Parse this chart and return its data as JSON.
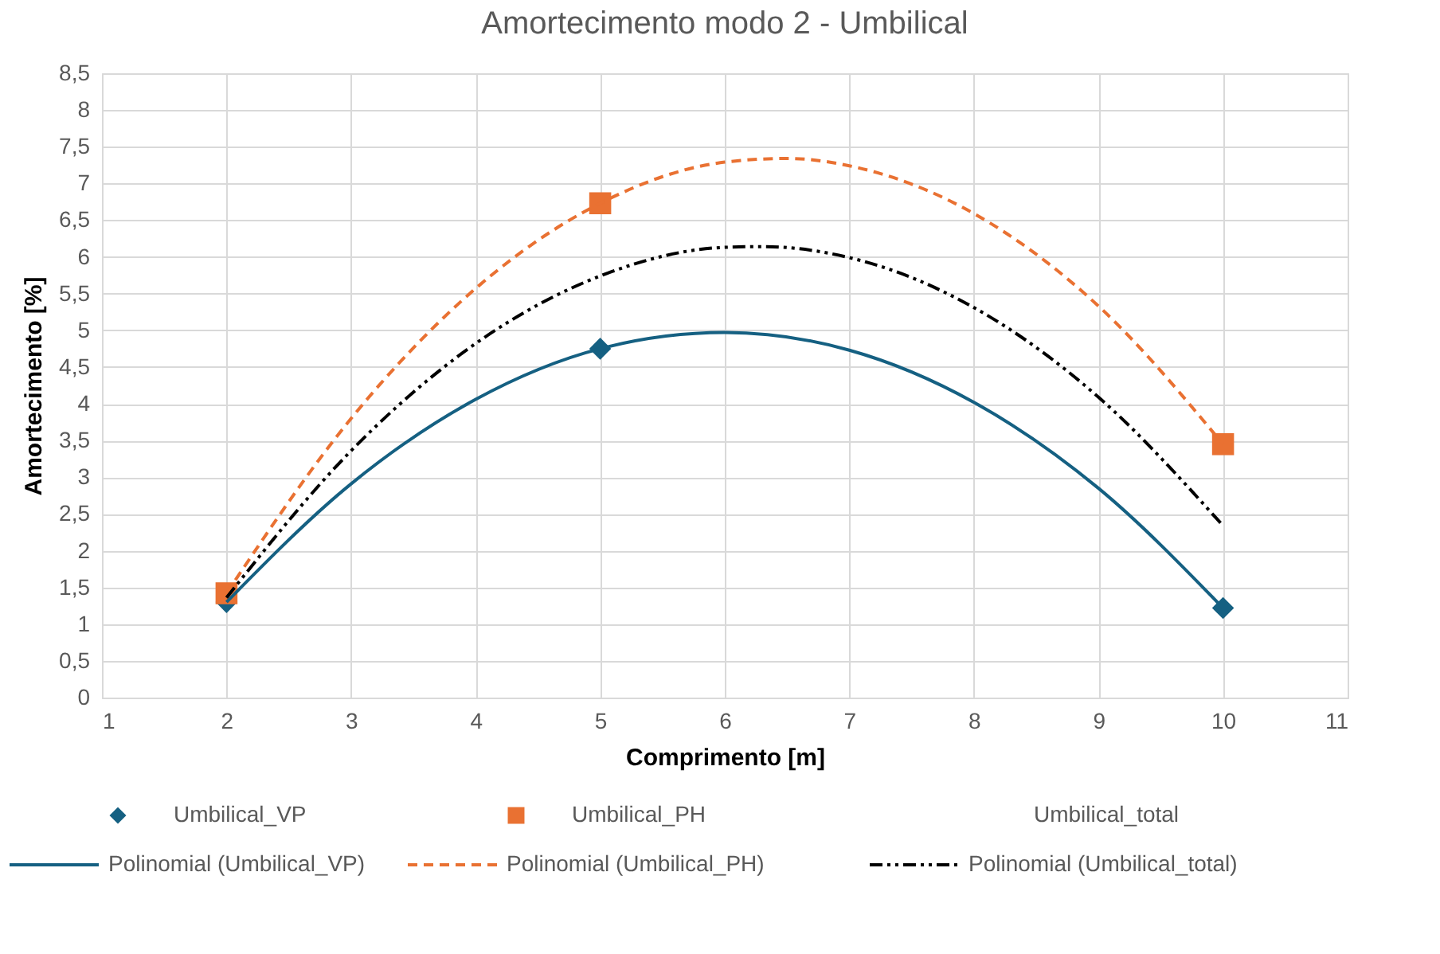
{
  "chart_data": {
    "type": "scatter",
    "title": "Amortecimento modo 2 - Umbilical",
    "xlabel": "Comprimento [m]",
    "ylabel": "Amortecimento [%]",
    "xlim": [
      1,
      11
    ],
    "xticks": [
      1,
      2,
      3,
      4,
      5,
      6,
      7,
      8,
      9,
      10,
      11
    ],
    "ylim": [
      0,
      8.5
    ],
    "yticks": [
      0,
      {
        "value": 0.5,
        "label": "0,5"
      },
      1,
      {
        "value": 1.5,
        "label": "1,5"
      },
      2,
      {
        "value": 2.5,
        "label": "2,5"
      },
      3,
      {
        "value": 3.5,
        "label": "3,5"
      },
      4,
      {
        "value": 4.5,
        "label": "4,5"
      },
      5,
      {
        "value": 5.5,
        "label": "5,5"
      },
      6,
      {
        "value": 6.5,
        "label": "6,5"
      },
      7,
      {
        "value": 7.5,
        "label": "7,5"
      },
      8,
      {
        "value": 8.5,
        "label": "8,5"
      }
    ],
    "grid": true,
    "legend": "bottom",
    "annotations": [
      "Umbilical_total"
    ],
    "series": [
      {
        "name": "Umbilical_VP",
        "marker": "diamond",
        "color": "#156082",
        "x": [
          2,
          5,
          10
        ],
        "values": [
          1.3,
          4.75,
          1.22
        ]
      },
      {
        "name": "Umbilical_PH",
        "marker": "square",
        "color": "#e97132",
        "x": [
          2,
          5,
          10
        ],
        "values": [
          1.42,
          6.73,
          3.45
        ]
      },
      {
        "name": "Polinomial (Umbilical_VP)",
        "type": "line",
        "line_style": "solid",
        "marker": "none",
        "color": "#156082",
        "x": [
          2,
          3,
          4,
          5,
          6,
          7,
          8,
          9,
          10
        ],
        "values": [
          1.3,
          2.91,
          4.06,
          4.75,
          4.97,
          4.73,
          4.02,
          2.85,
          1.22
        ]
      },
      {
        "name": "Polinomial (Umbilical_PH)",
        "type": "line",
        "line_style": "dashed",
        "marker": "none",
        "color": "#e97132",
        "x": [
          2,
          3,
          4,
          5,
          6,
          6.5,
          7,
          8,
          9,
          10
        ],
        "values": [
          1.42,
          3.8,
          5.57,
          6.73,
          7.29,
          7.34,
          7.24,
          6.59,
          5.33,
          3.45
        ]
      },
      {
        "name": "Polinomial (Umbilical_total)",
        "type": "line",
        "line_style": "dashdot",
        "marker": "none",
        "color": "#000000",
        "x": [
          2,
          3,
          4,
          5,
          6,
          6.3,
          7,
          8,
          9,
          10
        ],
        "values": [
          1.36,
          3.36,
          4.82,
          5.74,
          6.13,
          6.14,
          5.99,
          5.31,
          4.09,
          2.34
        ]
      }
    ]
  }
}
